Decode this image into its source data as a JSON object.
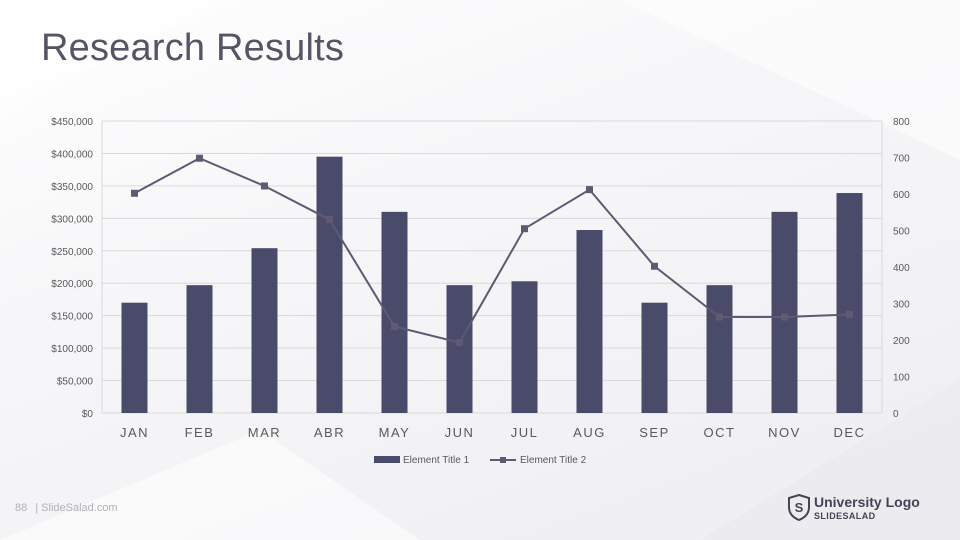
{
  "slide": {
    "title": "Research Results",
    "page_number": "88",
    "footer_site": "| SlideSalad.com",
    "logo_title": "University Logo",
    "logo_subtitle": "SLIDESALAD",
    "logo_letter": "S",
    "logo_icon": "shield-icon"
  },
  "colors": {
    "bar": "#4a4a6a",
    "line": "#5f5a72",
    "grid": "#d9d9d9",
    "text": "#595959"
  },
  "chart_data": {
    "type": "bar",
    "categories": [
      "JAN",
      "FEB",
      "MAR",
      "ABR",
      "MAY",
      "JUN",
      "JUL",
      "AUG",
      "SEP",
      "OCT",
      "NOV",
      "DEC"
    ],
    "series": [
      {
        "name": "Element Title 1",
        "type": "bar",
        "axis": "left",
        "values": [
          170000,
          197000,
          254000,
          395000,
          310000,
          197000,
          203000,
          282000,
          170000,
          197000,
          310000,
          339000
        ]
      },
      {
        "name": "Element Title 2",
        "type": "line",
        "axis": "right",
        "marker": "square",
        "values": [
          602,
          698,
          622,
          530,
          237,
          193,
          505,
          612,
          402,
          263,
          263,
          270
        ]
      }
    ],
    "y_left": {
      "min": 0,
      "max": 450000,
      "step": 50000,
      "ticks": [
        "$0",
        "$50,000",
        "$100,000",
        "$150,000",
        "$200,000",
        "$250,000",
        "$300,000",
        "$350,000",
        "$400,000",
        "$450,000"
      ]
    },
    "y_right": {
      "min": 0,
      "max": 800,
      "step": 100,
      "ticks": [
        "0",
        "100",
        "200",
        "300",
        "400",
        "500",
        "600",
        "700",
        "800"
      ]
    },
    "grid": true,
    "legend_position": "bottom"
  }
}
